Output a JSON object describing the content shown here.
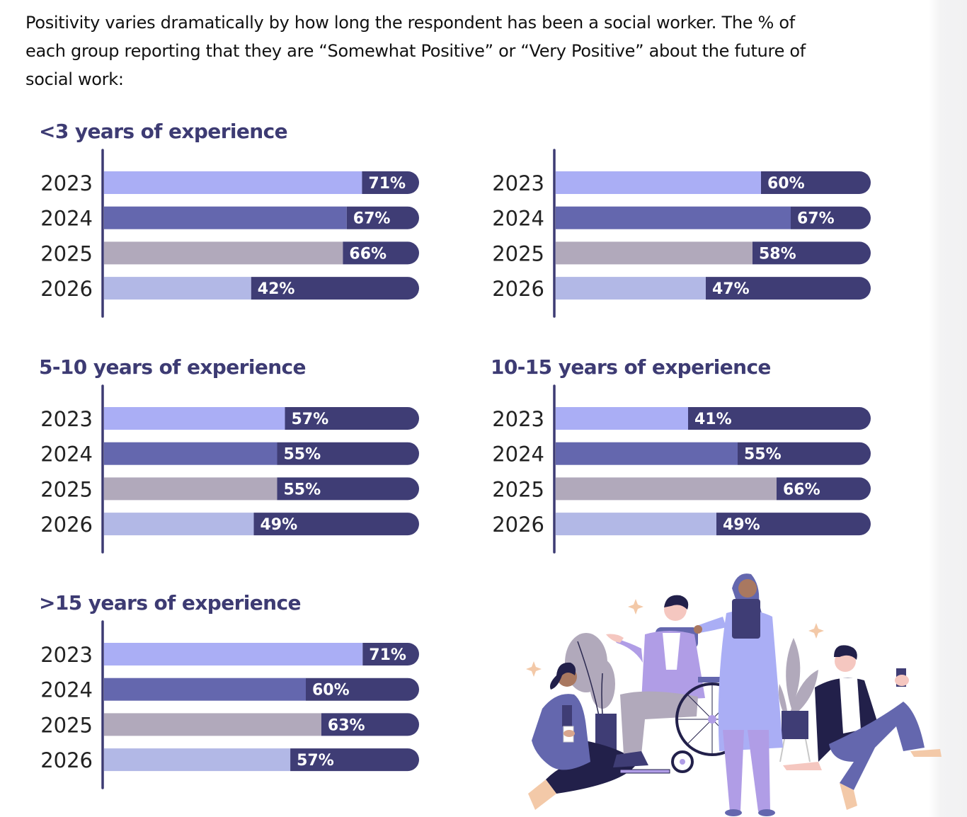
{
  "intro": {
    "lines": [
      "Positivity varies dramatically by how long the respondent has been a social worker.  The % of",
      "each group reporting that they are “Somewhat Positive” or “Very Positive” about the future of",
      "social work:"
    ]
  },
  "colors": {
    "title": "#3d3b73",
    "axis": "#3d3b73",
    "remainder": "#3f3d75",
    "year_fill": {
      "2023": "#aaaef5",
      "2024": "#6467ae",
      "2025": "#b1a9bb",
      "2026": "#b2b8e6"
    }
  },
  "chart_data": [
    {
      "type": "bar",
      "title": "<3 years of experience",
      "categories": [
        "2023",
        "2024",
        "2025",
        "2026"
      ],
      "values": [
        71,
        67,
        66,
        42
      ],
      "labels": [
        "71%",
        "67%",
        "66%",
        "42%"
      ],
      "unit": "%",
      "xlim": [
        0,
        100
      ]
    },
    {
      "type": "bar",
      "title": "",
      "categories": [
        "2023",
        "2024",
        "2025",
        "2026"
      ],
      "values": [
        60,
        67,
        58,
        47
      ],
      "labels": [
        "60%",
        "67%",
        "58%",
        "47%"
      ],
      "unit": "%",
      "xlim": [
        0,
        100
      ]
    },
    {
      "type": "bar",
      "title": "5-10 years of experience",
      "categories": [
        "2023",
        "2024",
        "2025",
        "2026"
      ],
      "values": [
        57,
        55,
        55,
        49
      ],
      "labels": [
        "57%",
        "55%",
        "55%",
        "49%"
      ],
      "unit": "%",
      "xlim": [
        0,
        100
      ]
    },
    {
      "type": "bar",
      "title": "10-15 years of experience",
      "categories": [
        "2023",
        "2024",
        "2025",
        "2026"
      ],
      "values": [
        41,
        55,
        66,
        49
      ],
      "labels": [
        "41%",
        "55%",
        "66%",
        "49%"
      ],
      "unit": "%",
      "xlim": [
        0,
        100
      ]
    },
    {
      "type": "bar",
      "title": ">15 years of experience",
      "categories": [
        "2023",
        "2024",
        "2025",
        "2026"
      ],
      "values": [
        71,
        60,
        63,
        57
      ],
      "labels": [
        "71%",
        "60%",
        "63%",
        "57%"
      ],
      "unit": "%",
      "xlim": [
        0,
        100
      ]
    }
  ],
  "illustration": {
    "description": "group of social workers and clients: woman sitting with coffee, man in wheelchair, woman in hijab holding folder, man sitting with coffee cup, potted plants and sparkles"
  }
}
